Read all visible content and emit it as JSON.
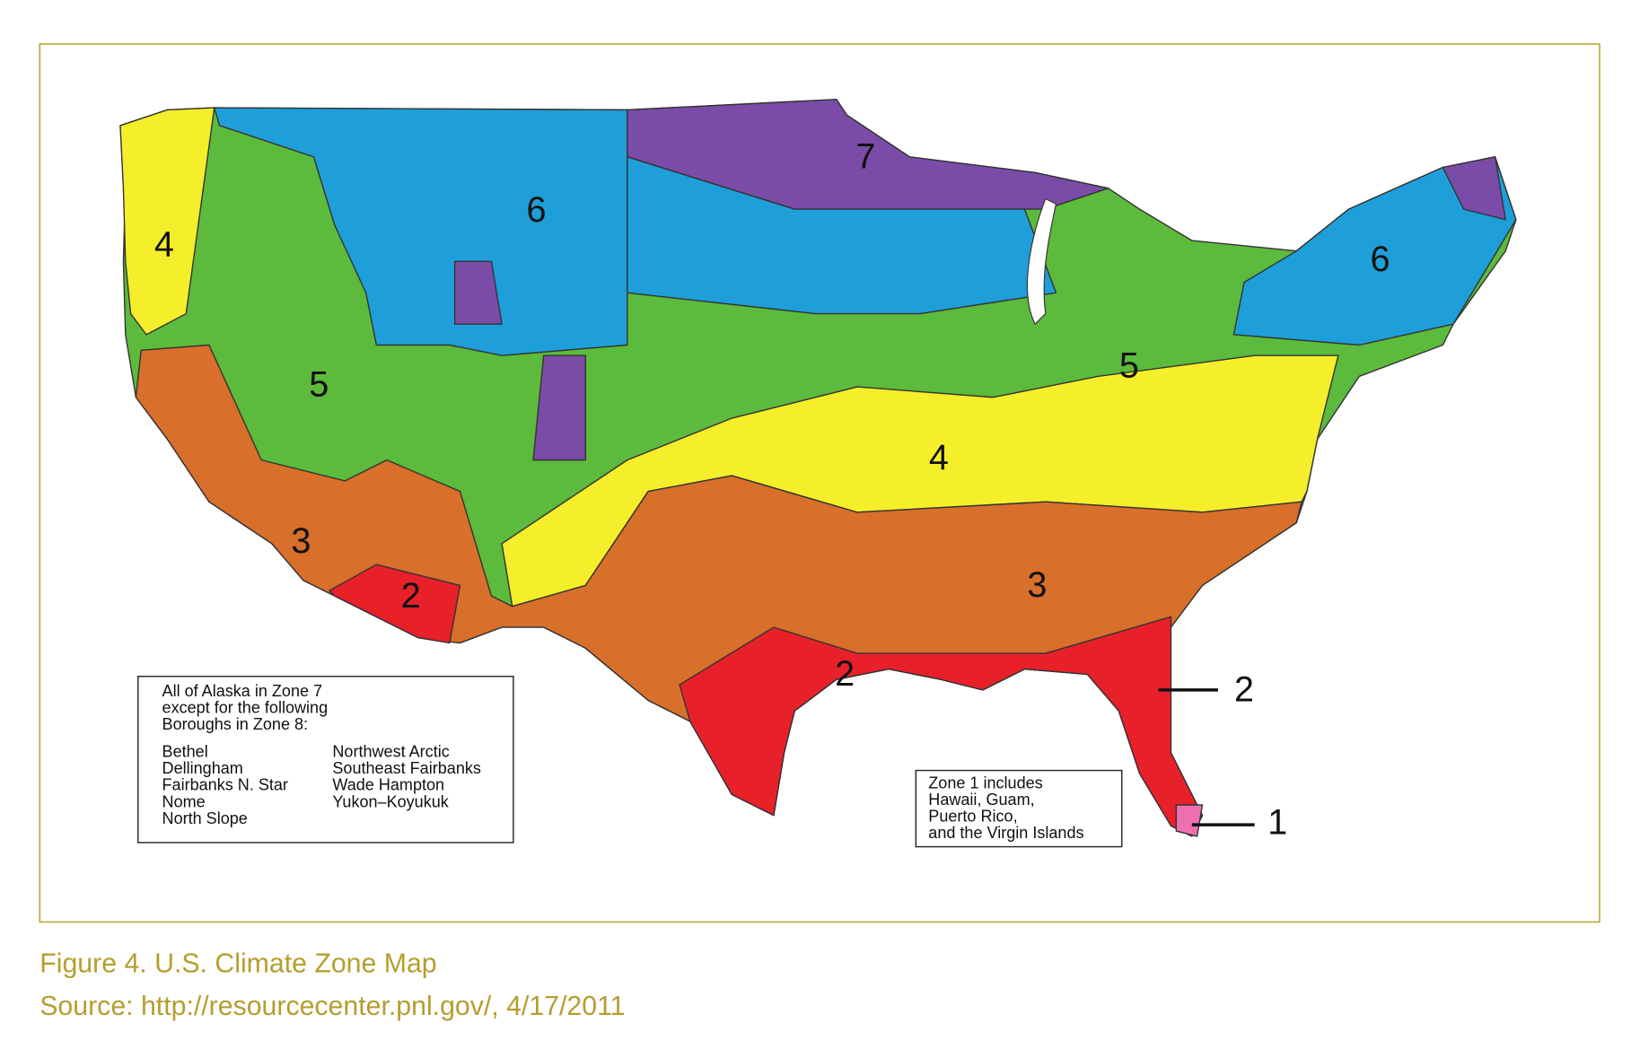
{
  "map": {
    "zone_labels": [
      "7",
      "6",
      "4",
      "5",
      "3",
      "2",
      "4",
      "3",
      "2",
      "5",
      "6"
    ],
    "callouts": [
      "2",
      "1"
    ],
    "alaska_note": {
      "lines": [
        "All of Alaska in Zone 7",
        "except for the following",
        "Boroughs in Zone 8:"
      ],
      "boroughs_left": [
        "Bethel",
        "Dellingham",
        "Fairbanks N. Star",
        "Nome",
        "North Slope"
      ],
      "boroughs_right": [
        "Northwest Arctic",
        "Southeast Fairbanks",
        "Wade Hampton",
        "Yukon–Koyukuk"
      ]
    },
    "zone1_note": {
      "lines": [
        "Zone 1 includes",
        "Hawaii, Guam,",
        "Puerto Rico,",
        "and the Virgin Islands"
      ]
    }
  },
  "caption": {
    "figure": "Figure 4.  U.S. Climate Zone Map",
    "source": "Source: http://resourcecenter.pnl.gov/, 4/17/2011"
  }
}
